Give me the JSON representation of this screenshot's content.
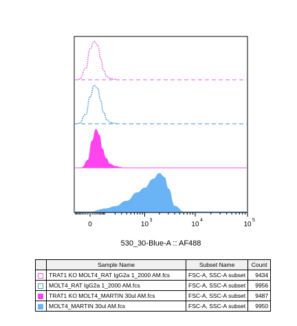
{
  "chart_data": {
    "type": "area",
    "xlabel": "530_30-Blue-A :: AF488",
    "x_scale": "biexponential",
    "xlim": [
      -100,
      100000
    ],
    "ticks": [
      {
        "value": 0,
        "label": "0"
      },
      {
        "value": 1000,
        "label": "10",
        "exp": "3"
      },
      {
        "value": 10000,
        "label": "10",
        "exp": "4"
      },
      {
        "value": 100000,
        "label": "10",
        "exp": "5"
      }
    ],
    "series": [
      {
        "name": "TRAT1 KO MOLT4_RAT IgG2a 1_2000 AM.fcs",
        "style": "dotted",
        "color": "#e05ce0",
        "x": [
          -60,
          -20,
          0,
          20,
          40,
          60,
          80,
          110,
          150,
          200
        ],
        "y": [
          0.02,
          0.3,
          0.8,
          1.0,
          0.9,
          0.55,
          0.25,
          0.08,
          0.03,
          0.01
        ]
      },
      {
        "name": "MOLT4_RAT IgG2a 1_2000 AM.fcs",
        "style": "dotted",
        "color": "#3a8fd8",
        "x": [
          -60,
          -20,
          0,
          20,
          40,
          60,
          80,
          110,
          150,
          200
        ],
        "y": [
          0.02,
          0.25,
          0.7,
          1.0,
          0.92,
          0.6,
          0.3,
          0.1,
          0.03,
          0.01
        ]
      },
      {
        "name": "TRAT1 KO MOLT4_MARTIN 30ul AM.fcs",
        "style": "filled",
        "color": "#ff44ee",
        "x": [
          -40,
          -10,
          10,
          30,
          50,
          70,
          100,
          140,
          200,
          300
        ],
        "y": [
          0.02,
          0.2,
          0.7,
          1.0,
          0.85,
          0.5,
          0.25,
          0.1,
          0.04,
          0.01
        ]
      },
      {
        "name": "MOLT4_MARTIN 30ul AM.fcs",
        "style": "filled",
        "color": "#6ab4f5",
        "x": [
          0,
          100,
          200,
          400,
          700,
          1000,
          1500,
          2000,
          2500,
          3000,
          4000,
          6000
        ],
        "y": [
          0.0,
          0.08,
          0.14,
          0.28,
          0.5,
          0.62,
          0.85,
          1.0,
          0.9,
          0.6,
          0.15,
          0.0
        ]
      }
    ]
  },
  "table": {
    "headers": [
      "Sample Name",
      "Subset Name",
      "Count"
    ],
    "rows": [
      {
        "sample": "TRAT1 KO MOLT4_RAT IgG2a 1_2000 AM.fcs",
        "subset": "FSC-A, SSC-A subset",
        "count": "9434",
        "swatch": "outline-pink"
      },
      {
        "sample": "MOLT4_RAT IgG2a 1_2000 AM.fcs",
        "subset": "FSC-A, SSC-A subset",
        "count": "9956",
        "swatch": "outline-teal"
      },
      {
        "sample": "TRAT1 KO MOLT4_MARTIN 30ul AM.fcs",
        "subset": "FSC-A, SSC-A subset",
        "count": "9487",
        "swatch": "filled-pink"
      },
      {
        "sample": "MOLT4_MARTIN 30ul AM.fcs",
        "subset": "FSC-A, SSC-A subset",
        "count": "9950",
        "swatch": "filled-blue"
      }
    ]
  }
}
